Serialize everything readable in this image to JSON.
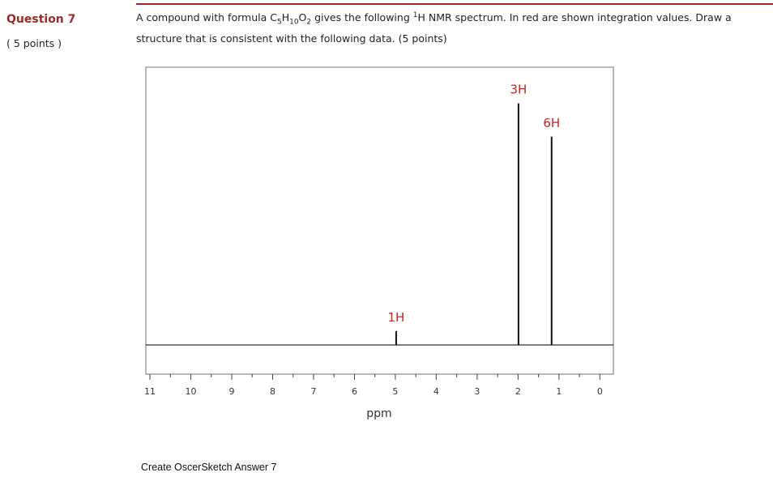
{
  "question": {
    "label": "Question 7",
    "points": "( 5 points )",
    "text": [
      "A compound with formula C",
      "5",
      "H",
      "10",
      "O",
      "2",
      " gives the following ",
      "1",
      "H NMR spectrum.  In red are shown integration values.  Draw a structure that is consistent with the following data.  (5 points)"
    ]
  },
  "spectrum": {
    "xlabel": "ppm",
    "xlim": [
      11.1,
      -0.33
    ],
    "xticks": [
      11,
      10,
      9,
      8,
      7,
      6,
      5,
      4,
      3,
      2,
      1,
      0
    ],
    "peaks": [
      {
        "label": "3H",
        "ppm": 1.99,
        "height": 87,
        "color": "#cc2222"
      },
      {
        "label": "6H",
        "ppm": 1.18,
        "height": 75,
        "color": "#cc2222"
      },
      {
        "label": "1H",
        "ppm": 4.98,
        "height": 5,
        "color": "#cc2222"
      }
    ]
  },
  "answer_link": "Create OscerSketch Answer 7"
}
